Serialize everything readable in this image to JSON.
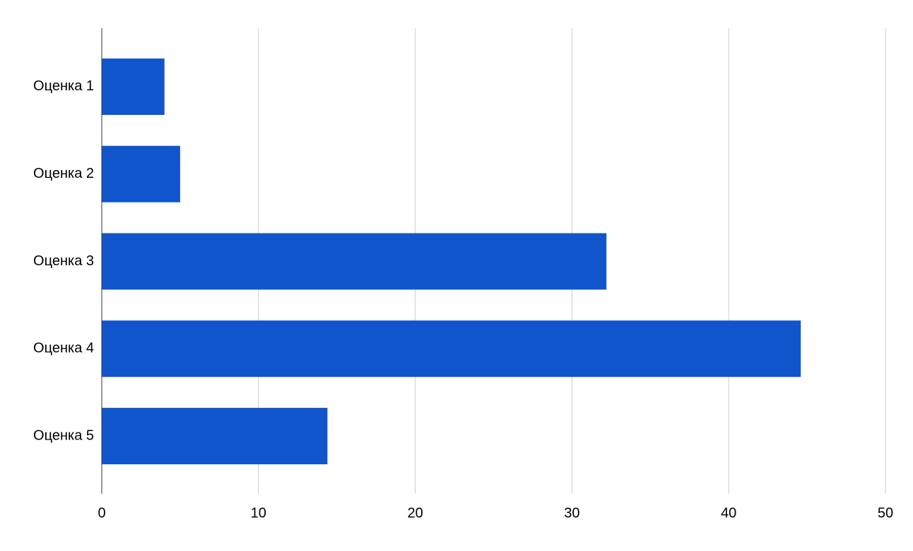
{
  "chart_data": {
    "type": "bar",
    "orientation": "horizontal",
    "categories": [
      "Оценка 1",
      "Оценка 2",
      "Оценка 3",
      "Оценка 4",
      "Оценка 5"
    ],
    "values": [
      4,
      5,
      32.2,
      44.6,
      14.4
    ],
    "color": "#1155cc",
    "xlim": [
      0,
      50
    ],
    "xticks": [
      0,
      10,
      20,
      30,
      40,
      50
    ],
    "grid": true
  }
}
